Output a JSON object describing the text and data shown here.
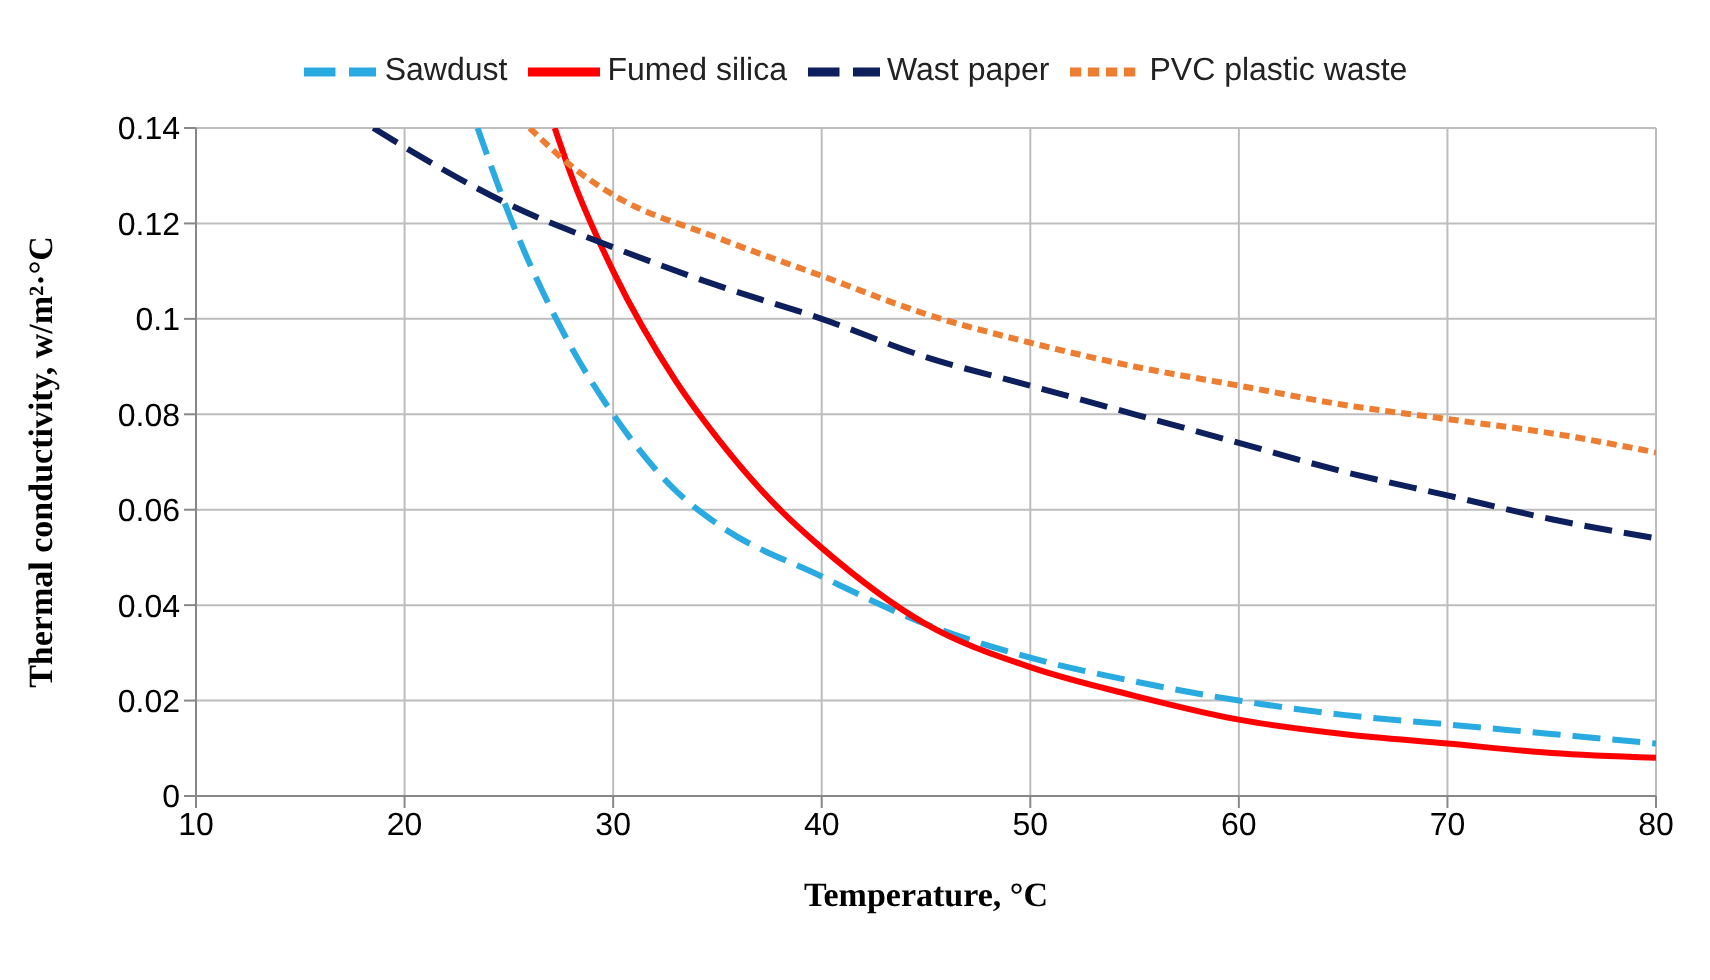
{
  "chart_data": {
    "type": "line",
    "xlabel": "Temperature, °C",
    "ylabel": "Thermal conductivity, w/m²·°C",
    "xlim": [
      10,
      80
    ],
    "xticks": [
      10,
      20,
      30,
      40,
      50,
      60,
      70,
      80
    ],
    "ylim": [
      0,
      0.14
    ],
    "yticks": [
      0,
      0.02,
      0.04,
      0.06,
      0.08,
      0.1,
      0.12,
      0.14
    ],
    "grid": true,
    "legend": "top",
    "marker": "none",
    "series": [
      {
        "name": "Sawdust",
        "color": "#29aae1",
        "line_style": "dashed",
        "x": [
          23.5,
          25,
          28,
          30,
          33,
          35,
          40,
          45,
          50,
          55,
          60,
          65,
          70,
          75,
          80
        ],
        "values": [
          0.14,
          0.122,
          0.094,
          0.08,
          0.064,
          0.057,
          0.046,
          0.036,
          0.029,
          0.024,
          0.02,
          0.017,
          0.015,
          0.013,
          0.011
        ]
      },
      {
        "name": "Fumed silica",
        "color": "#ff0000",
        "line_style": "solid",
        "x": [
          27.2,
          28,
          30,
          33,
          35,
          38,
          40,
          45,
          50,
          55,
          60,
          65,
          70,
          75,
          80
        ],
        "values": [
          0.14,
          0.13,
          0.11,
          0.087,
          0.075,
          0.06,
          0.052,
          0.036,
          0.027,
          0.021,
          0.016,
          0.013,
          0.011,
          0.009,
          0.008
        ]
      },
      {
        "name": "Wast paper",
        "color": "#0d1f5c",
        "line_style": "dashed",
        "x": [
          18.5,
          20,
          25,
          30,
          35,
          40,
          45,
          50,
          55,
          60,
          65,
          70,
          75,
          80
        ],
        "values": [
          0.14,
          0.136,
          0.124,
          0.115,
          0.107,
          0.1,
          0.092,
          0.086,
          0.08,
          0.074,
          0.068,
          0.063,
          0.058,
          0.054
        ]
      },
      {
        "name": "PVC plastic waste",
        "color": "#ed7d31",
        "line_style": "dotted",
        "x": [
          26,
          28,
          30,
          35,
          40,
          45,
          50,
          55,
          60,
          65,
          70,
          75,
          80
        ],
        "values": [
          0.14,
          0.132,
          0.126,
          0.117,
          0.109,
          0.101,
          0.095,
          0.09,
          0.086,
          0.082,
          0.079,
          0.076,
          0.072
        ]
      }
    ]
  }
}
